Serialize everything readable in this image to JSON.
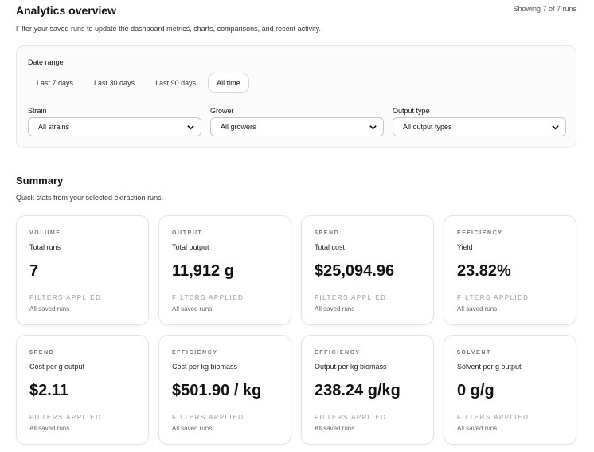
{
  "header": {
    "title": "Analytics overview",
    "showing": "Showing 7 of 7 runs",
    "subtitle": "Filter your saved runs to update the dashboard metrics, charts, comparisons, and recent activity."
  },
  "filters": {
    "date_range_label": "Date range",
    "ranges": [
      {
        "label": "Last 7 days",
        "active": false
      },
      {
        "label": "Last 30 days",
        "active": false
      },
      {
        "label": "Last 90 days",
        "active": false
      },
      {
        "label": "All time",
        "active": true
      }
    ],
    "strain": {
      "label": "Strain",
      "value": "All strains"
    },
    "grower": {
      "label": "Grower",
      "value": "All growers"
    },
    "output_type": {
      "label": "Output type",
      "value": "All output types"
    }
  },
  "summary": {
    "title": "Summary",
    "subtitle": "Quick stats from your selected extraction runs.",
    "cards": [
      {
        "tag": "VOLUME",
        "name": "Total runs",
        "value": "7",
        "filters": "FILTERS APPLIED",
        "runs": "All saved runs"
      },
      {
        "tag": "OUTPUT",
        "name": "Total output",
        "value": "11,912 g",
        "filters": "FILTERS APPLIED",
        "runs": "All saved runs"
      },
      {
        "tag": "$PEND",
        "name": "Total cost",
        "value": "$25,094.96",
        "filters": "FILTERS APPLIED",
        "runs": "All saved runs"
      },
      {
        "tag": "EFFICIENCY",
        "name": "Yield",
        "value": "23.82%",
        "filters": "FILTERS APPLIED",
        "runs": "All saved runs"
      },
      {
        "tag": "$PEND",
        "name": "Cost per g output",
        "value": "$2.11",
        "filters": "FILTERS APPLIED",
        "runs": "All saved runs"
      },
      {
        "tag": "EFFICIENCY",
        "name": "Cost per kg biomass",
        "value": "$501.90 / kg",
        "filters": "FILTERS APPLIED",
        "runs": "All saved runs"
      },
      {
        "tag": "EFFICIENCY",
        "name": "Output per kg biomass",
        "value": "238.24 g/kg",
        "filters": "FILTERS APPLIED",
        "runs": "All saved runs"
      },
      {
        "tag": "$OLVENT",
        "name": "Solvent per g output",
        "value": "0 g/g",
        "filters": "FILTERS APPLIED",
        "runs": "All saved runs"
      }
    ]
  }
}
